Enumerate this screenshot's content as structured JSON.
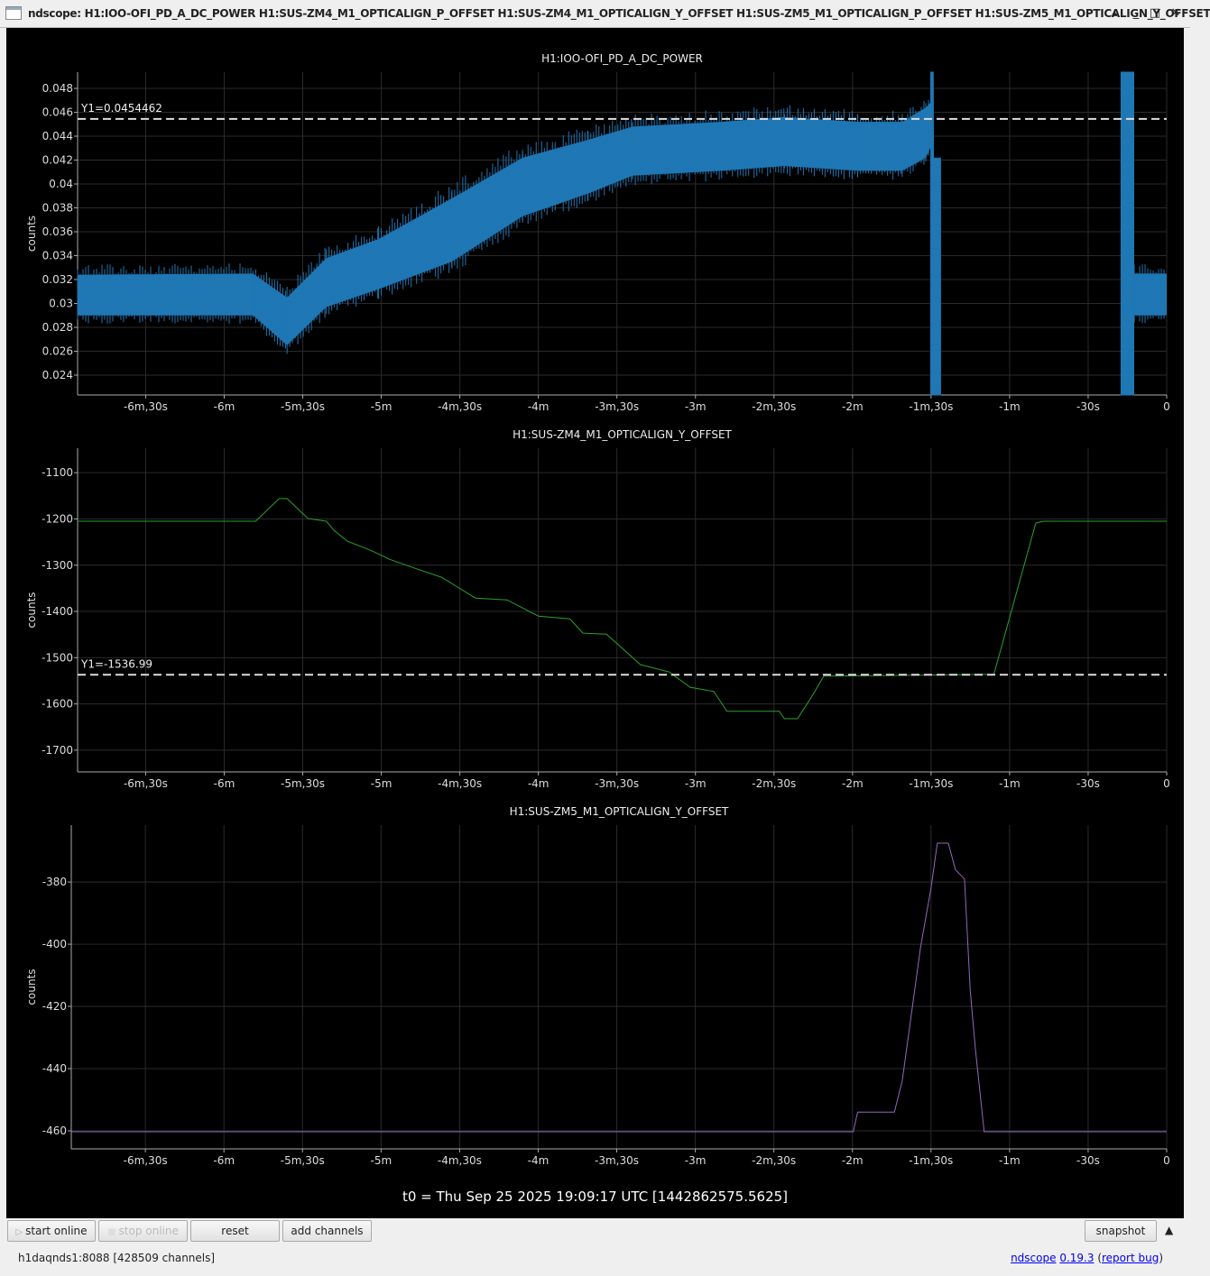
{
  "window": {
    "title": "ndscope: H1:IOO-OFI_PD_A_DC_POWER H1:SUS-ZM4_M1_OPTICALIGN_P_OFFSET H1:SUS-ZM4_M1_OPTICALIGN_Y_OFFSET H1:SUS-ZM5_M1_OPTICALIGN_P_OFFSET H1:SUS-ZM5_M1_OPTICALIGN_Y_OFFSET",
    "controls": {
      "shade": "▴",
      "minimize": "_",
      "maximize": "□",
      "close": "✕"
    }
  },
  "t0_label": "t0 = Thu Sep 25 2025 19:09:17 UTC [1442862575.5625]",
  "toolbar": {
    "start_online": "start online",
    "stop_online": "stop online",
    "reset": "reset",
    "add_channels": "add channels",
    "snapshot": "snapshot",
    "collapse": "▲"
  },
  "status": {
    "server": "h1daqnds1:8088  [428509 channels]",
    "app_link": "ndscope",
    "version_link": "0.19.3",
    "bug_link": "report bug"
  },
  "chart_data": [
    {
      "type": "area",
      "title": "H1:IOO-OFI_PD_A_DC_POWER",
      "ylabel": "counts",
      "xlim": [
        -416,
        0
      ],
      "ylim": [
        0.02234,
        0.04936
      ],
      "grid": true,
      "xticks": [
        {
          "v": -390,
          "label": "-6m,30s"
        },
        {
          "v": -360,
          "label": "-6m"
        },
        {
          "v": -330,
          "label": "-5m,30s"
        },
        {
          "v": -300,
          "label": "-5m"
        },
        {
          "v": -270,
          "label": "-4m,30s"
        },
        {
          "v": -240,
          "label": "-4m"
        },
        {
          "v": -210,
          "label": "-3m,30s"
        },
        {
          "v": -180,
          "label": "-3m"
        },
        {
          "v": -150,
          "label": "-2m,30s"
        },
        {
          "v": -120,
          "label": "-2m"
        },
        {
          "v": -90,
          "label": "-1m,30s"
        },
        {
          "v": -60,
          "label": "-1m"
        },
        {
          "v": -30,
          "label": "-30s"
        },
        {
          "v": 0,
          "label": "0"
        }
      ],
      "yticks": [
        {
          "v": 0.048,
          "label": "0.048"
        },
        {
          "v": 0.046,
          "label": "0.046"
        },
        {
          "v": 0.044,
          "label": "0.044"
        },
        {
          "v": 0.042,
          "label": "0.042"
        },
        {
          "v": 0.04,
          "label": "0.04"
        },
        {
          "v": 0.038,
          "label": "0.038"
        },
        {
          "v": 0.036,
          "label": "0.036"
        },
        {
          "v": 0.034,
          "label": "0.034"
        },
        {
          "v": 0.032,
          "label": "0.032"
        },
        {
          "v": 0.03,
          "label": "0.03"
        },
        {
          "v": 0.028,
          "label": "0.028"
        },
        {
          "v": 0.026,
          "label": "0.026"
        },
        {
          "v": 0.024,
          "label": "0.024"
        }
      ],
      "color": "#1f77b4",
      "cursor": {
        "value": 0.0454462,
        "label": "Y1=0.0454462"
      },
      "segments": [
        [
          [
            -416,
            0.029,
            0.0324
          ],
          [
            -349,
            0.029,
            0.0325
          ],
          [
            -336,
            0.0265,
            0.0305
          ],
          [
            -321,
            0.0297,
            0.0338
          ],
          [
            -301,
            0.0312,
            0.0354
          ],
          [
            -273,
            0.0335,
            0.0388
          ],
          [
            -246,
            0.0373,
            0.0422
          ],
          [
            -221,
            0.0392,
            0.0437
          ],
          [
            -204,
            0.0407,
            0.0448
          ],
          [
            -170,
            0.0411,
            0.0452
          ],
          [
            -146,
            0.0415,
            0.0456
          ],
          [
            -118,
            0.0411,
            0.0452
          ],
          [
            -101,
            0.0411,
            0.0452
          ],
          [
            -92,
            0.0422,
            0.0464
          ],
          [
            -90.3,
            0.043,
            0.0468
          ]
        ],
        [
          [
            -90.3,
            0.0223,
            0.0494
          ],
          [
            -89.0,
            0.0223,
            0.0494
          ],
          [
            -88.9,
            0.0223,
            0.0422
          ],
          [
            -86.2,
            0.0223,
            0.0422
          ]
        ],
        [
          [
            -17.6,
            0.0223,
            0.0494
          ],
          [
            -12.4,
            0.0223,
            0.0494
          ]
        ],
        [
          [
            -12.4,
            0.029,
            0.0325
          ],
          [
            0,
            0.029,
            0.0325
          ]
        ]
      ]
    },
    {
      "type": "line",
      "title": "H1:SUS-ZM4_M1_OPTICALIGN_Y_OFFSET",
      "ylabel": "counts",
      "xlim": [
        -416,
        0
      ],
      "ylim": [
        -1747,
        -1047
      ],
      "grid": true,
      "xticks": [
        {
          "v": -390,
          "label": "-6m,30s"
        },
        {
          "v": -360,
          "label": "-6m"
        },
        {
          "v": -330,
          "label": "-5m,30s"
        },
        {
          "v": -300,
          "label": "-5m"
        },
        {
          "v": -270,
          "label": "-4m,30s"
        },
        {
          "v": -240,
          "label": "-4m"
        },
        {
          "v": -210,
          "label": "-3m,30s"
        },
        {
          "v": -180,
          "label": "-3m"
        },
        {
          "v": -150,
          "label": "-2m,30s"
        },
        {
          "v": -120,
          "label": "-2m"
        },
        {
          "v": -90,
          "label": "-1m,30s"
        },
        {
          "v": -60,
          "label": "-1m"
        },
        {
          "v": -30,
          "label": "-30s"
        },
        {
          "v": 0,
          "label": "0"
        }
      ],
      "yticks": [
        {
          "v": -1100,
          "label": "-1100"
        },
        {
          "v": -1200,
          "label": "-1200"
        },
        {
          "v": -1300,
          "label": "-1300"
        },
        {
          "v": -1400,
          "label": "-1400"
        },
        {
          "v": -1500,
          "label": "-1500"
        },
        {
          "v": -1600,
          "label": "-1600"
        },
        {
          "v": -1700,
          "label": "-1700"
        }
      ],
      "color": "#2ca02c",
      "cursor": {
        "value": -1536.99,
        "label": "Y1=-1536.99"
      },
      "x": [
        -416,
        -348,
        -339,
        -336,
        -328,
        -321,
        -318,
        -313,
        -304,
        -297,
        -287,
        -277,
        -264,
        -252,
        -240,
        -228,
        -223,
        -214,
        -201,
        -190,
        -182,
        -173,
        -168,
        -148,
        -146,
        -141,
        -135,
        -131,
        -66,
        -50,
        -47,
        0
      ],
      "y": [
        -1205,
        -1205,
        -1156,
        -1156,
        -1199,
        -1205,
        -1225,
        -1248,
        -1268,
        -1287,
        -1307,
        -1326,
        -1371,
        -1375,
        -1410,
        -1416,
        -1447,
        -1449,
        -1515,
        -1531,
        -1564,
        -1573,
        -1616,
        -1616,
        -1632,
        -1632,
        -1579,
        -1540,
        -1536,
        -1209,
        -1205,
        -1205
      ]
    },
    {
      "type": "line",
      "title": "H1:SUS-ZM5_M1_OPTICALIGN_Y_OFFSET",
      "ylabel": "counts",
      "xlim": [
        -418.3,
        0
      ],
      "ylim": [
        -465.8,
        -361.7
      ],
      "grid": true,
      "xticks": [
        {
          "v": -390,
          "label": "-6m,30s"
        },
        {
          "v": -360,
          "label": "-6m"
        },
        {
          "v": -330,
          "label": "-5m,30s"
        },
        {
          "v": -300,
          "label": "-5m"
        },
        {
          "v": -270,
          "label": "-4m,30s"
        },
        {
          "v": -240,
          "label": "-4m"
        },
        {
          "v": -210,
          "label": "-3m,30s"
        },
        {
          "v": -180,
          "label": "-3m"
        },
        {
          "v": -150,
          "label": "-2m,30s"
        },
        {
          "v": -120,
          "label": "-2m"
        },
        {
          "v": -90,
          "label": "-1m,30s"
        },
        {
          "v": -60,
          "label": "-1m"
        },
        {
          "v": -30,
          "label": "-30s"
        },
        {
          "v": 0,
          "label": "0"
        }
      ],
      "yticks": [
        {
          "v": -380,
          "label": "-380"
        },
        {
          "v": -400,
          "label": "-400"
        },
        {
          "v": -420,
          "label": "-420"
        },
        {
          "v": -440,
          "label": "-440"
        },
        {
          "v": -460,
          "label": "-460"
        }
      ],
      "color": "#9467bd",
      "x": [
        -418.3,
        -119.7,
        -118,
        -104,
        -101,
        -94,
        -90,
        -87.6,
        -83.4,
        -80.7,
        -77.2,
        -75,
        -73,
        -69.7,
        0
      ],
      "y": [
        -460.3,
        -460.3,
        -454,
        -454,
        -444,
        -401,
        -382,
        -367.5,
        -367.5,
        -376,
        -379,
        -415,
        -434,
        -460.3,
        -460.3
      ]
    }
  ]
}
